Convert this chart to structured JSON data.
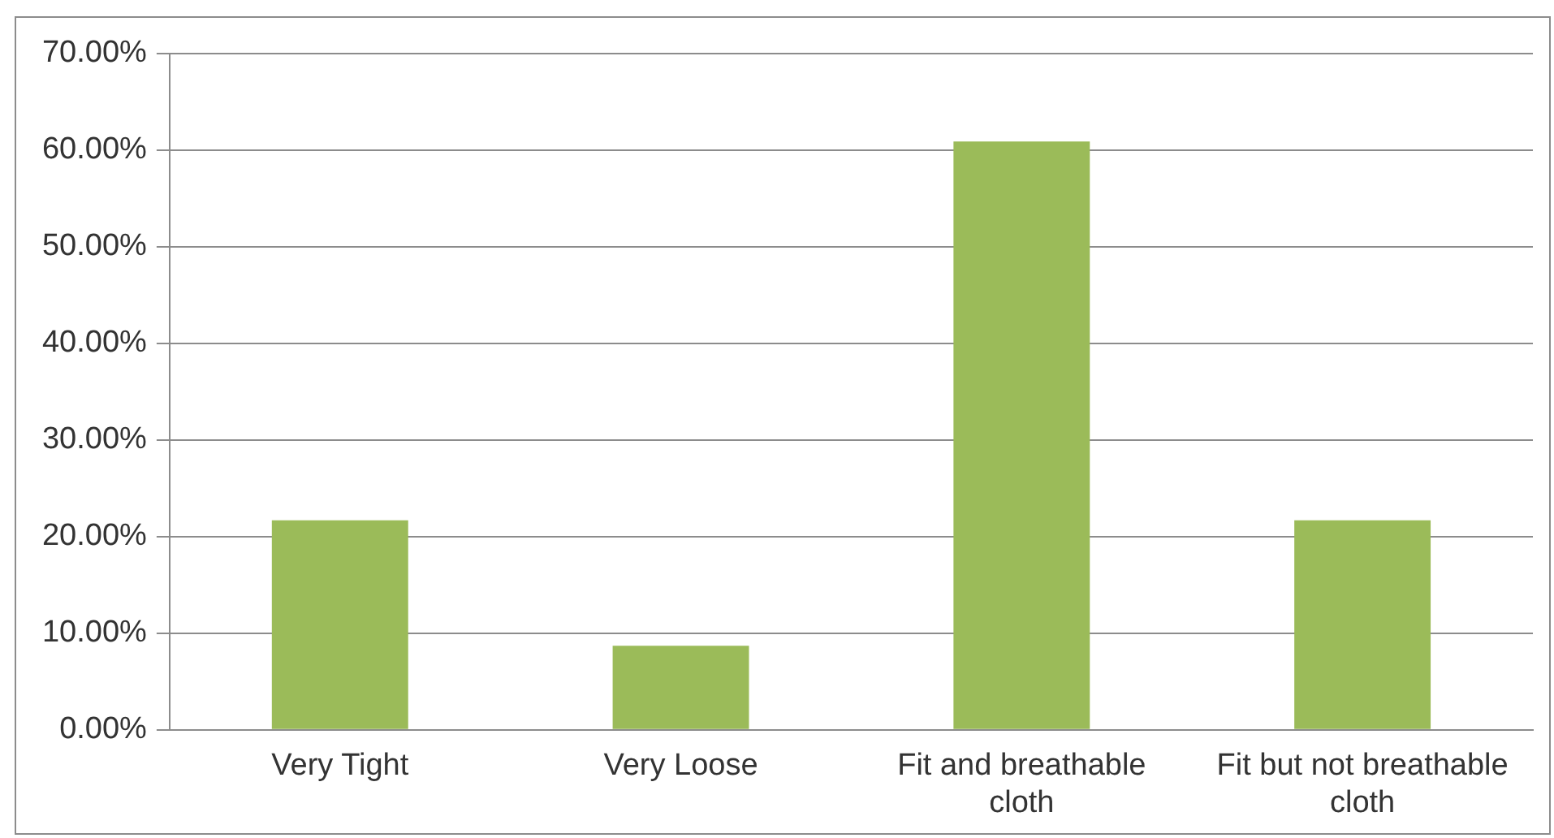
{
  "chart_data": {
    "type": "bar",
    "categories": [
      "Very Tight",
      "Very Loose",
      "Fit and breathable cloth",
      "Fit but not breathable cloth"
    ],
    "values": [
      21.7,
      8.7,
      60.9,
      21.7
    ],
    "color": "#9bbb59",
    "ylim": [
      0,
      70
    ],
    "yticks": [
      {
        "value": 0,
        "label": "0.00%"
      },
      {
        "value": 10,
        "label": "10.00%"
      },
      {
        "value": 20,
        "label": "20.00%"
      },
      {
        "value": 30,
        "label": "30.00%"
      },
      {
        "value": 40,
        "label": "40.00%"
      },
      {
        "value": 50,
        "label": "50.00%"
      },
      {
        "value": 60,
        "label": "60.00%"
      },
      {
        "value": 70,
        "label": "70.00%"
      }
    ],
    "grid": "y",
    "legend": false
  }
}
